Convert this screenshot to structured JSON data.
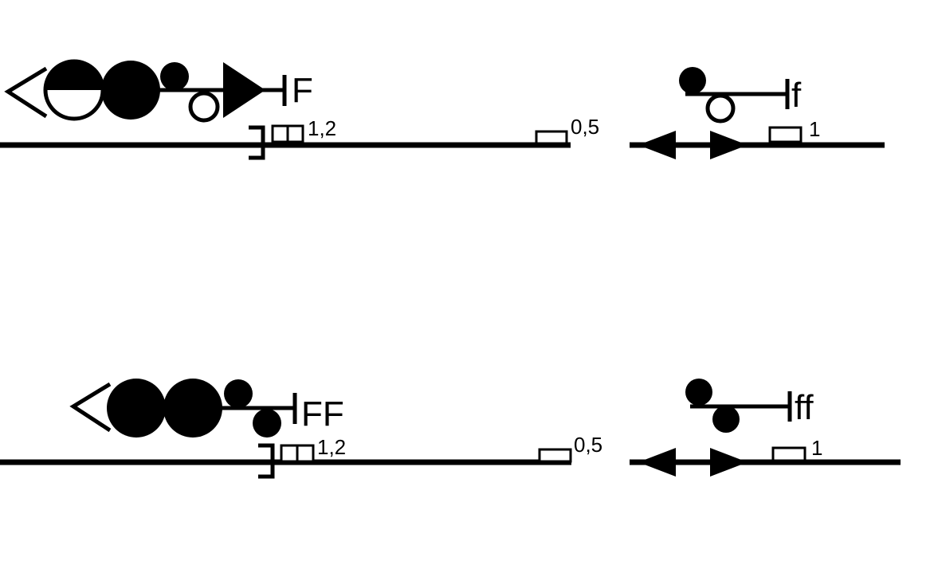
{
  "symbols": {
    "F": {
      "code": "F",
      "speed_near": "1,2",
      "speed_far": "0,5"
    },
    "f": {
      "code": "f",
      "speed": "1"
    },
    "FF": {
      "code": "FF",
      "speed_near": "1,2",
      "speed_far": "0,5"
    },
    "ff": {
      "code": "ff",
      "speed": "1"
    }
  },
  "colors": {
    "ink": "#000000",
    "paper": "#ffffff"
  }
}
